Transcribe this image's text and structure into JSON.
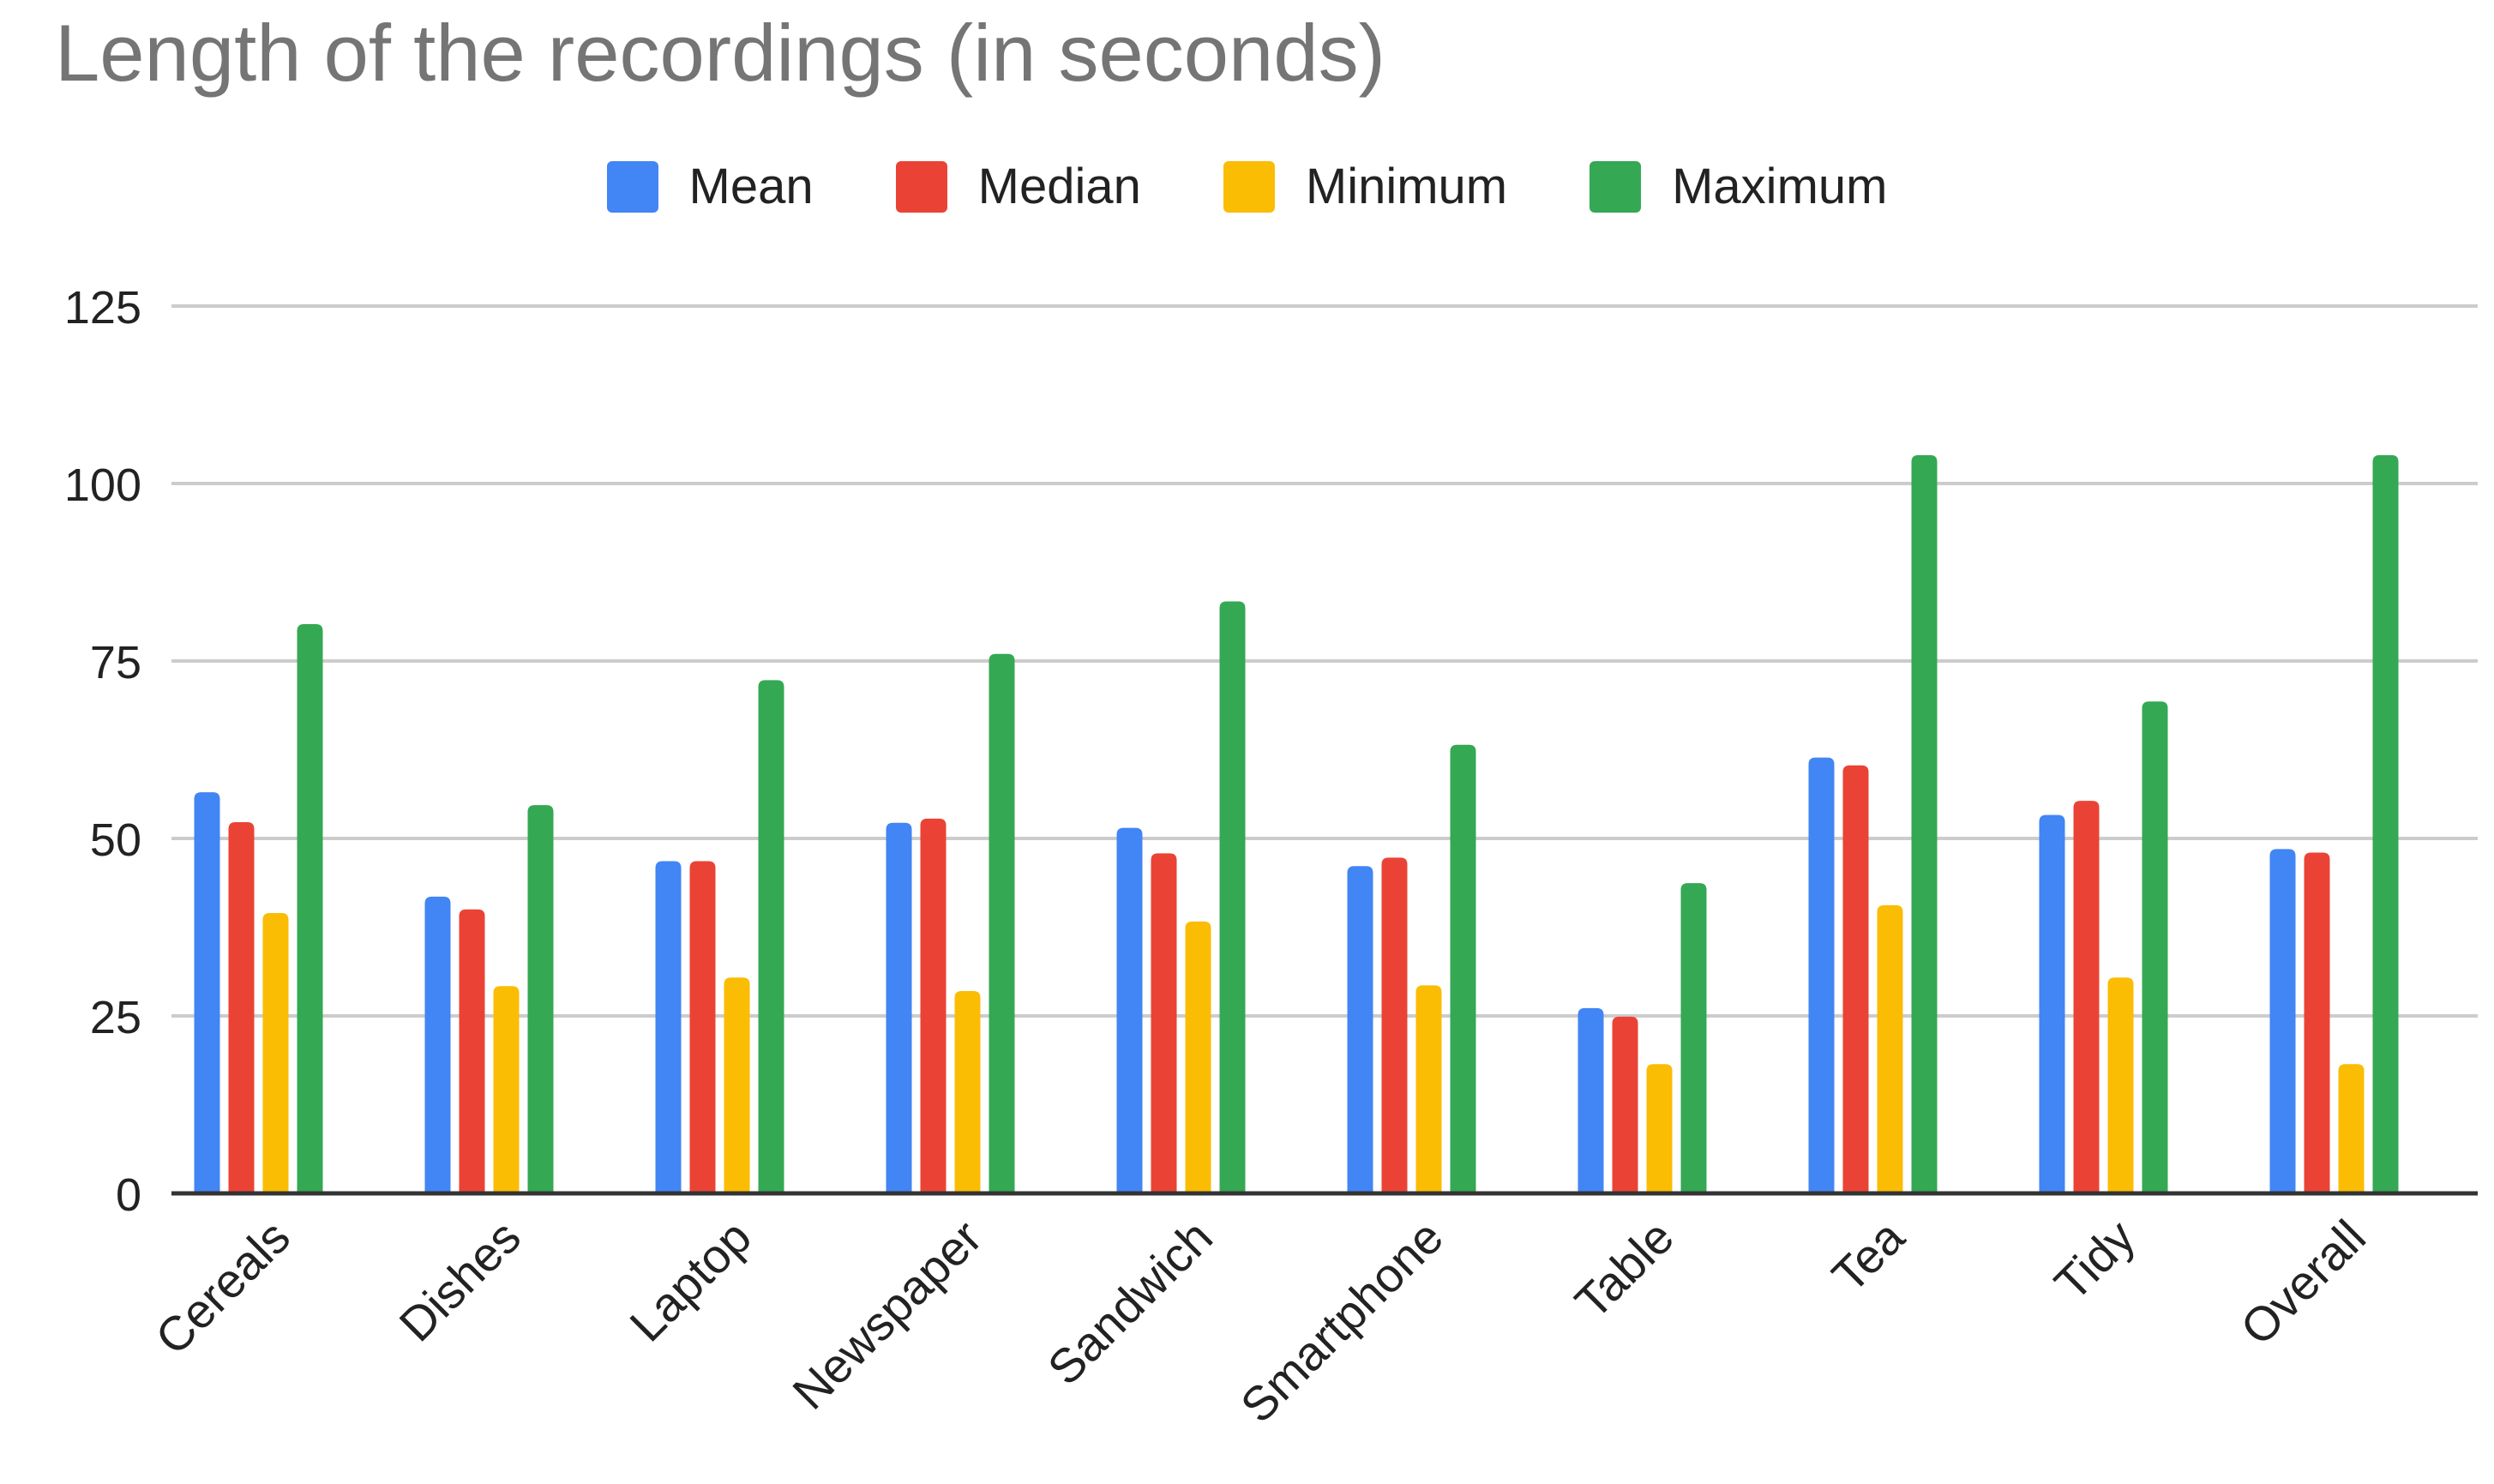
{
  "chart_data": {
    "type": "bar",
    "title": "Length of the recordings (in seconds)",
    "xlabel": "",
    "ylabel": "",
    "ylim": [
      0,
      125
    ],
    "yticks": [
      0,
      25,
      50,
      75,
      100,
      125
    ],
    "grid": true,
    "legend_position": "top",
    "categories": [
      "Cereals",
      "Dishes",
      "Laptop",
      "Newspaper",
      "Sandwich",
      "Smartphone",
      "Table",
      "Tea",
      "Tidy",
      "Overall"
    ],
    "series": [
      {
        "name": "Mean",
        "color": "#4285F4",
        "values": [
          56.5,
          41.8,
          46.8,
          52.2,
          51.5,
          46.1,
          26.1,
          61.4,
          53.3,
          48.5
        ]
      },
      {
        "name": "Median",
        "color": "#EA4335",
        "values": [
          52.3,
          40.0,
          46.8,
          52.8,
          47.9,
          47.3,
          24.9,
          60.3,
          55.3,
          48.0
        ]
      },
      {
        "name": "Minimum",
        "color": "#FBBC04",
        "values": [
          39.5,
          29.2,
          30.4,
          28.5,
          38.3,
          29.3,
          18.2,
          40.6,
          30.4,
          18.2
        ]
      },
      {
        "name": "Maximum",
        "color": "#34A853",
        "values": [
          80.2,
          54.7,
          72.3,
          76.0,
          83.4,
          63.2,
          43.7,
          104.0,
          69.3,
          104.0
        ]
      }
    ]
  }
}
